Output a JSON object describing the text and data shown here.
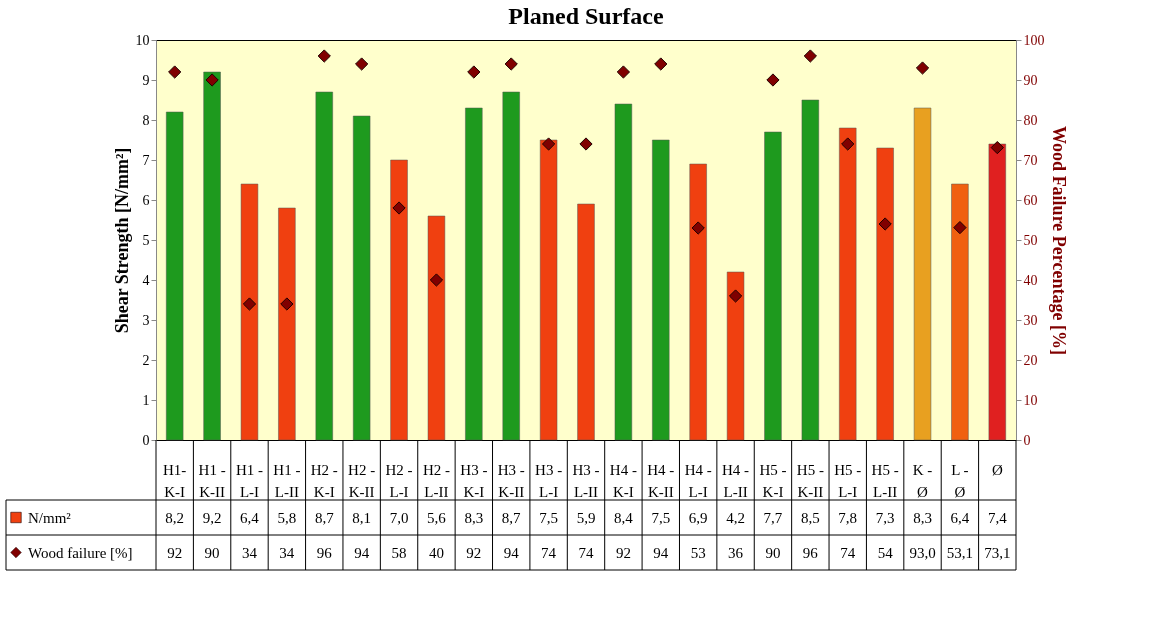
{
  "chart_data": {
    "type": "bar",
    "title": "Planed Surface",
    "ylabel": "Shear Strength [N/mm²]",
    "y2label": "Wood Failure Percentage [%]",
    "categories": [
      "H1-\nK-I",
      "H1 -\nK-II",
      "H1 -\nL-I",
      "H1 -\nL-II",
      "H2 -\nK-I",
      "H2 -\nK-II",
      "H2 -\nL-I",
      "H2 -\nL-II",
      "H3 -\nK-I",
      "H3 -\nK-II",
      "H3 -\nL-I",
      "H3 -\nL-II",
      "H4 -\nK-I",
      "H4 -\nK-II",
      "H4 -\nL-I",
      "H4 -\nL-II",
      "H5 -\nK-I",
      "H5 -\nK-II",
      "H5 -\nL-I",
      "H5 -\nL-II",
      "K -\nØ",
      "L -\nØ",
      "Ø"
    ],
    "series": [
      {
        "name": "N/mm²",
        "color": "#f04010",
        "colors": [
          "#1e9a1e",
          "#1e9a1e",
          "#f04010",
          "#f04010",
          "#1e9a1e",
          "#1e9a1e",
          "#f04010",
          "#f04010",
          "#1e9a1e",
          "#1e9a1e",
          "#f04010",
          "#f04010",
          "#1e9a1e",
          "#1e9a1e",
          "#f04010",
          "#f04010",
          "#1e9a1e",
          "#1e9a1e",
          "#f04010",
          "#f04010",
          "#e8a020",
          "#f06010",
          "#e02020"
        ],
        "values": [
          8.2,
          9.2,
          6.4,
          5.8,
          8.7,
          8.1,
          7.0,
          5.6,
          8.3,
          8.7,
          7.5,
          5.9,
          8.4,
          7.5,
          6.9,
          4.2,
          7.7,
          8.5,
          7.8,
          7.3,
          8.3,
          6.4,
          7.4
        ],
        "value_labels": [
          "8,2",
          "9,2",
          "6,4",
          "5,8",
          "8,7",
          "8,1",
          "7,0",
          "5,6",
          "8,3",
          "8,7",
          "7,5",
          "5,9",
          "8,4",
          "7,5",
          "6,9",
          "4,2",
          "7,7",
          "8,5",
          "7,8",
          "7,3",
          "8,3",
          "6,4",
          "7,4"
        ]
      },
      {
        "name": "Wood failure [%]",
        "type": "scatter",
        "axis": "y2",
        "color": "#800000",
        "values": [
          92,
          90,
          34,
          34,
          96,
          94,
          58,
          40,
          92,
          94,
          74,
          74,
          92,
          94,
          53,
          36,
          90,
          96,
          74,
          54,
          93.0,
          53.1,
          73.1
        ],
        "value_labels": [
          "92",
          "90",
          "34",
          "34",
          "96",
          "94",
          "58",
          "40",
          "92",
          "94",
          "74",
          "74",
          "92",
          "94",
          "53",
          "36",
          "90",
          "96",
          "74",
          "54",
          "93,0",
          "53,1",
          "73,1"
        ]
      }
    ],
    "ylim": [
      0,
      10
    ],
    "yticks": [
      0,
      1,
      2,
      3,
      4,
      5,
      6,
      7,
      8,
      9,
      10
    ],
    "y2lim": [
      0,
      100
    ],
    "y2ticks": [
      0,
      10,
      20,
      30,
      40,
      50,
      60,
      70,
      80,
      90,
      100
    ],
    "marker": "diamond",
    "legend": "bottom"
  }
}
